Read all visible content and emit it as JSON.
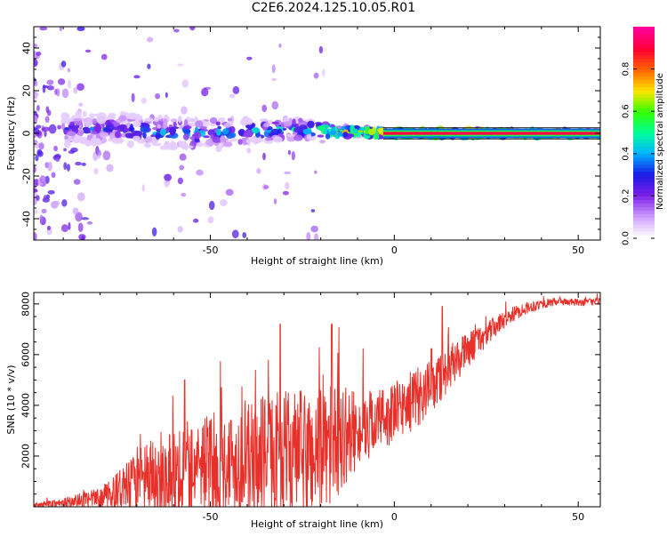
{
  "figure": {
    "title": "C2E6.2024.125.10.05.R01"
  },
  "chart_data": [
    {
      "type": "heatmap",
      "title": "C2E6.2024.125.10.05.R01",
      "xlabel": "Height of straight line (km)",
      "ylabel": "Frequency (Hz)",
      "xlim": [
        -98,
        56
      ],
      "ylim": [
        -50,
        50
      ],
      "xticks": [
        -50,
        0,
        50
      ],
      "yticks": [
        -40,
        -20,
        0,
        20,
        40
      ],
      "colorbar": {
        "label": "Normalized spectral amplitude",
        "range": [
          0,
          1
        ],
        "ticks": [
          "0.0",
          "0.2",
          "0.4",
          "0.6",
          "0.8"
        ],
        "colormap": [
          "#ffffff",
          "#cc99ff",
          "#7a1fe6",
          "#1a1ae6",
          "#00b3ff",
          "#00ff99",
          "#33ff00",
          "#ffe600",
          "#ff6600",
          "#ff0033",
          "#ff0099"
        ]
      },
      "ridge": [
        {
          "x": -90,
          "center_hz": 2,
          "spread_hz": 6,
          "amplitude": 0.3
        },
        {
          "x": -75,
          "center_hz": 2,
          "spread_hz": 6,
          "amplitude": 0.35
        },
        {
          "x": -60,
          "center_hz": 0,
          "spread_hz": 6,
          "amplitude": 0.4
        },
        {
          "x": -40,
          "center_hz": 1,
          "spread_hz": 5,
          "amplitude": 0.42
        },
        {
          "x": -25,
          "center_hz": 2,
          "spread_hz": 4,
          "amplitude": 0.45
        },
        {
          "x": -15,
          "center_hz": 1,
          "spread_hz": 2,
          "amplitude": 0.75
        },
        {
          "x": 0,
          "center_hz": 0,
          "spread_hz": 1.5,
          "amplitude": 0.9
        },
        {
          "x": 20,
          "center_hz": 0,
          "spread_hz": 1.5,
          "amplitude": 0.95
        },
        {
          "x": 56,
          "center_hz": 0,
          "spread_hz": 1.5,
          "amplitude": 0.95
        }
      ]
    },
    {
      "type": "line",
      "xlabel": "Height of straight line (km)",
      "ylabel": "SNR (10 * v/v)",
      "xlim": [
        -98,
        56
      ],
      "ylim": [
        0,
        8450
      ],
      "xticks": [
        -50,
        0,
        50
      ],
      "yticks": [
        2000,
        4000,
        6000,
        8000
      ],
      "series": [
        {
          "color": "#e8302a",
          "x": [
            -98,
            -95,
            -90,
            -85,
            -80,
            -75,
            -70,
            -65,
            -60,
            -55,
            -50,
            -45,
            -40,
            -35,
            -30,
            -25,
            -20,
            -15,
            -10,
            -5,
            0,
            5,
            10,
            15,
            20,
            25,
            30,
            35,
            40,
            45,
            50,
            56
          ],
          "y": [
            50,
            100,
            150,
            250,
            350,
            600,
            900,
            1200,
            1500,
            1650,
            1700,
            1750,
            1850,
            2000,
            2100,
            2000,
            2200,
            2700,
            3000,
            3400,
            3700,
            4200,
            4700,
            5500,
            6200,
            6800,
            7400,
            7800,
            8000,
            8100,
            8050,
            8100
          ],
          "spread": [
            80,
            120,
            200,
            300,
            400,
            800,
            1300,
            1600,
            1800,
            2000,
            2000,
            2100,
            2200,
            2400,
            2500,
            2600,
            2600,
            2200,
            1500,
            1300,
            1200,
            1200,
            1100,
            900,
            700,
            500,
            350,
            250,
            200,
            150,
            150,
            150
          ],
          "spikes": [
            {
              "x": -31,
              "y": 7200
            },
            {
              "x": -17,
              "y": 7200
            },
            {
              "x": 13,
              "y": 7900
            },
            {
              "x": -57,
              "y": 5000
            },
            {
              "x": -47,
              "y": 4700
            }
          ]
        }
      ]
    }
  ]
}
